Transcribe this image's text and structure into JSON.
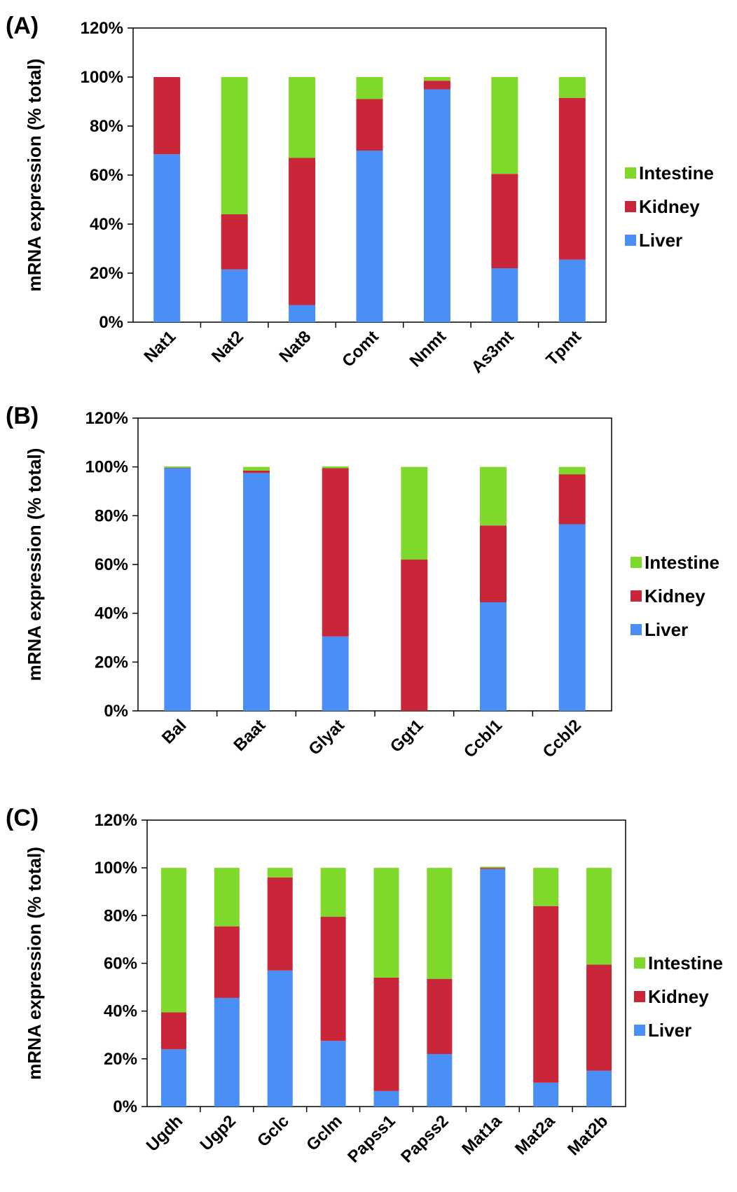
{
  "chart_data": [
    {
      "type": "bar",
      "stacked": true,
      "panel_label": "(A)",
      "ylabel": "mRNA expression (% total)",
      "ylim": [
        0,
        120
      ],
      "yticks": [
        "0%",
        "20%",
        "40%",
        "60%",
        "80%",
        "100%",
        "120%"
      ],
      "categories": [
        "Nat1",
        "Nat2",
        "Nat8",
        "Comt",
        "Nnmt",
        "As3mt",
        "Tpmt"
      ],
      "series": [
        {
          "name": "Liver",
          "color": "#4a8ff5",
          "values": [
            68.5,
            21.5,
            7,
            70,
            95,
            22,
            25.5
          ]
        },
        {
          "name": "Kidney",
          "color": "#c9263a",
          "values": [
            31.5,
            22.5,
            60,
            21,
            3.5,
            38.5,
            66
          ]
        },
        {
          "name": "Intestine",
          "color": "#7fd92a",
          "values": [
            0,
            56,
            33,
            9,
            1.5,
            39.5,
            8.5
          ]
        }
      ],
      "legend": [
        "Intestine",
        "Kidney",
        "Liver"
      ],
      "legend_position": "right"
    },
    {
      "type": "bar",
      "stacked": true,
      "panel_label": "(B)",
      "ylabel": "mRNA expression (% total)",
      "ylim": [
        0,
        120
      ],
      "yticks": [
        "0%",
        "20%",
        "40%",
        "60%",
        "80%",
        "100%",
        "120%"
      ],
      "categories": [
        "Bal",
        "Baat",
        "Glyat",
        "Ggt1",
        "Ccbl1",
        "Ccbl2"
      ],
      "series": [
        {
          "name": "Liver",
          "color": "#4a8ff5",
          "values": [
            99.5,
            97.5,
            30.5,
            0,
            44.5,
            76.5
          ]
        },
        {
          "name": "Kidney",
          "color": "#c9263a",
          "values": [
            0.2,
            1,
            69,
            62,
            31.5,
            20.5
          ]
        },
        {
          "name": "Intestine",
          "color": "#7fd92a",
          "values": [
            0.5,
            1.5,
            0.7,
            38,
            24,
            3
          ]
        }
      ],
      "legend": [
        "Intestine",
        "Kidney",
        "Liver"
      ],
      "legend_position": "right"
    },
    {
      "type": "bar",
      "stacked": true,
      "panel_label": "(C)",
      "ylabel": "mRNA expression (% total)",
      "ylim": [
        0,
        120
      ],
      "yticks": [
        "0%",
        "20%",
        "40%",
        "60%",
        "80%",
        "100%",
        "120%"
      ],
      "categories": [
        "Ugdh",
        "Ugp2",
        "Gclc",
        "Gclm",
        "Papss1",
        "Papss2",
        "Mat1a",
        "Mat2a",
        "Mat2b"
      ],
      "series": [
        {
          "name": "Liver",
          "color": "#4a8ff5",
          "values": [
            24,
            45.5,
            57,
            27.5,
            6.5,
            22,
            99.5,
            10,
            15
          ]
        },
        {
          "name": "Kidney",
          "color": "#c9263a",
          "values": [
            15.5,
            30,
            39,
            52,
            47.5,
            31.5,
            0.5,
            74,
            44.5
          ]
        },
        {
          "name": "Intestine",
          "color": "#7fd92a",
          "values": [
            60.5,
            24.5,
            4,
            20.5,
            46,
            46.5,
            0.5,
            16,
            40.5
          ]
        }
      ],
      "legend": [
        "Intestine",
        "Kidney",
        "Liver"
      ],
      "legend_position": "right"
    }
  ]
}
